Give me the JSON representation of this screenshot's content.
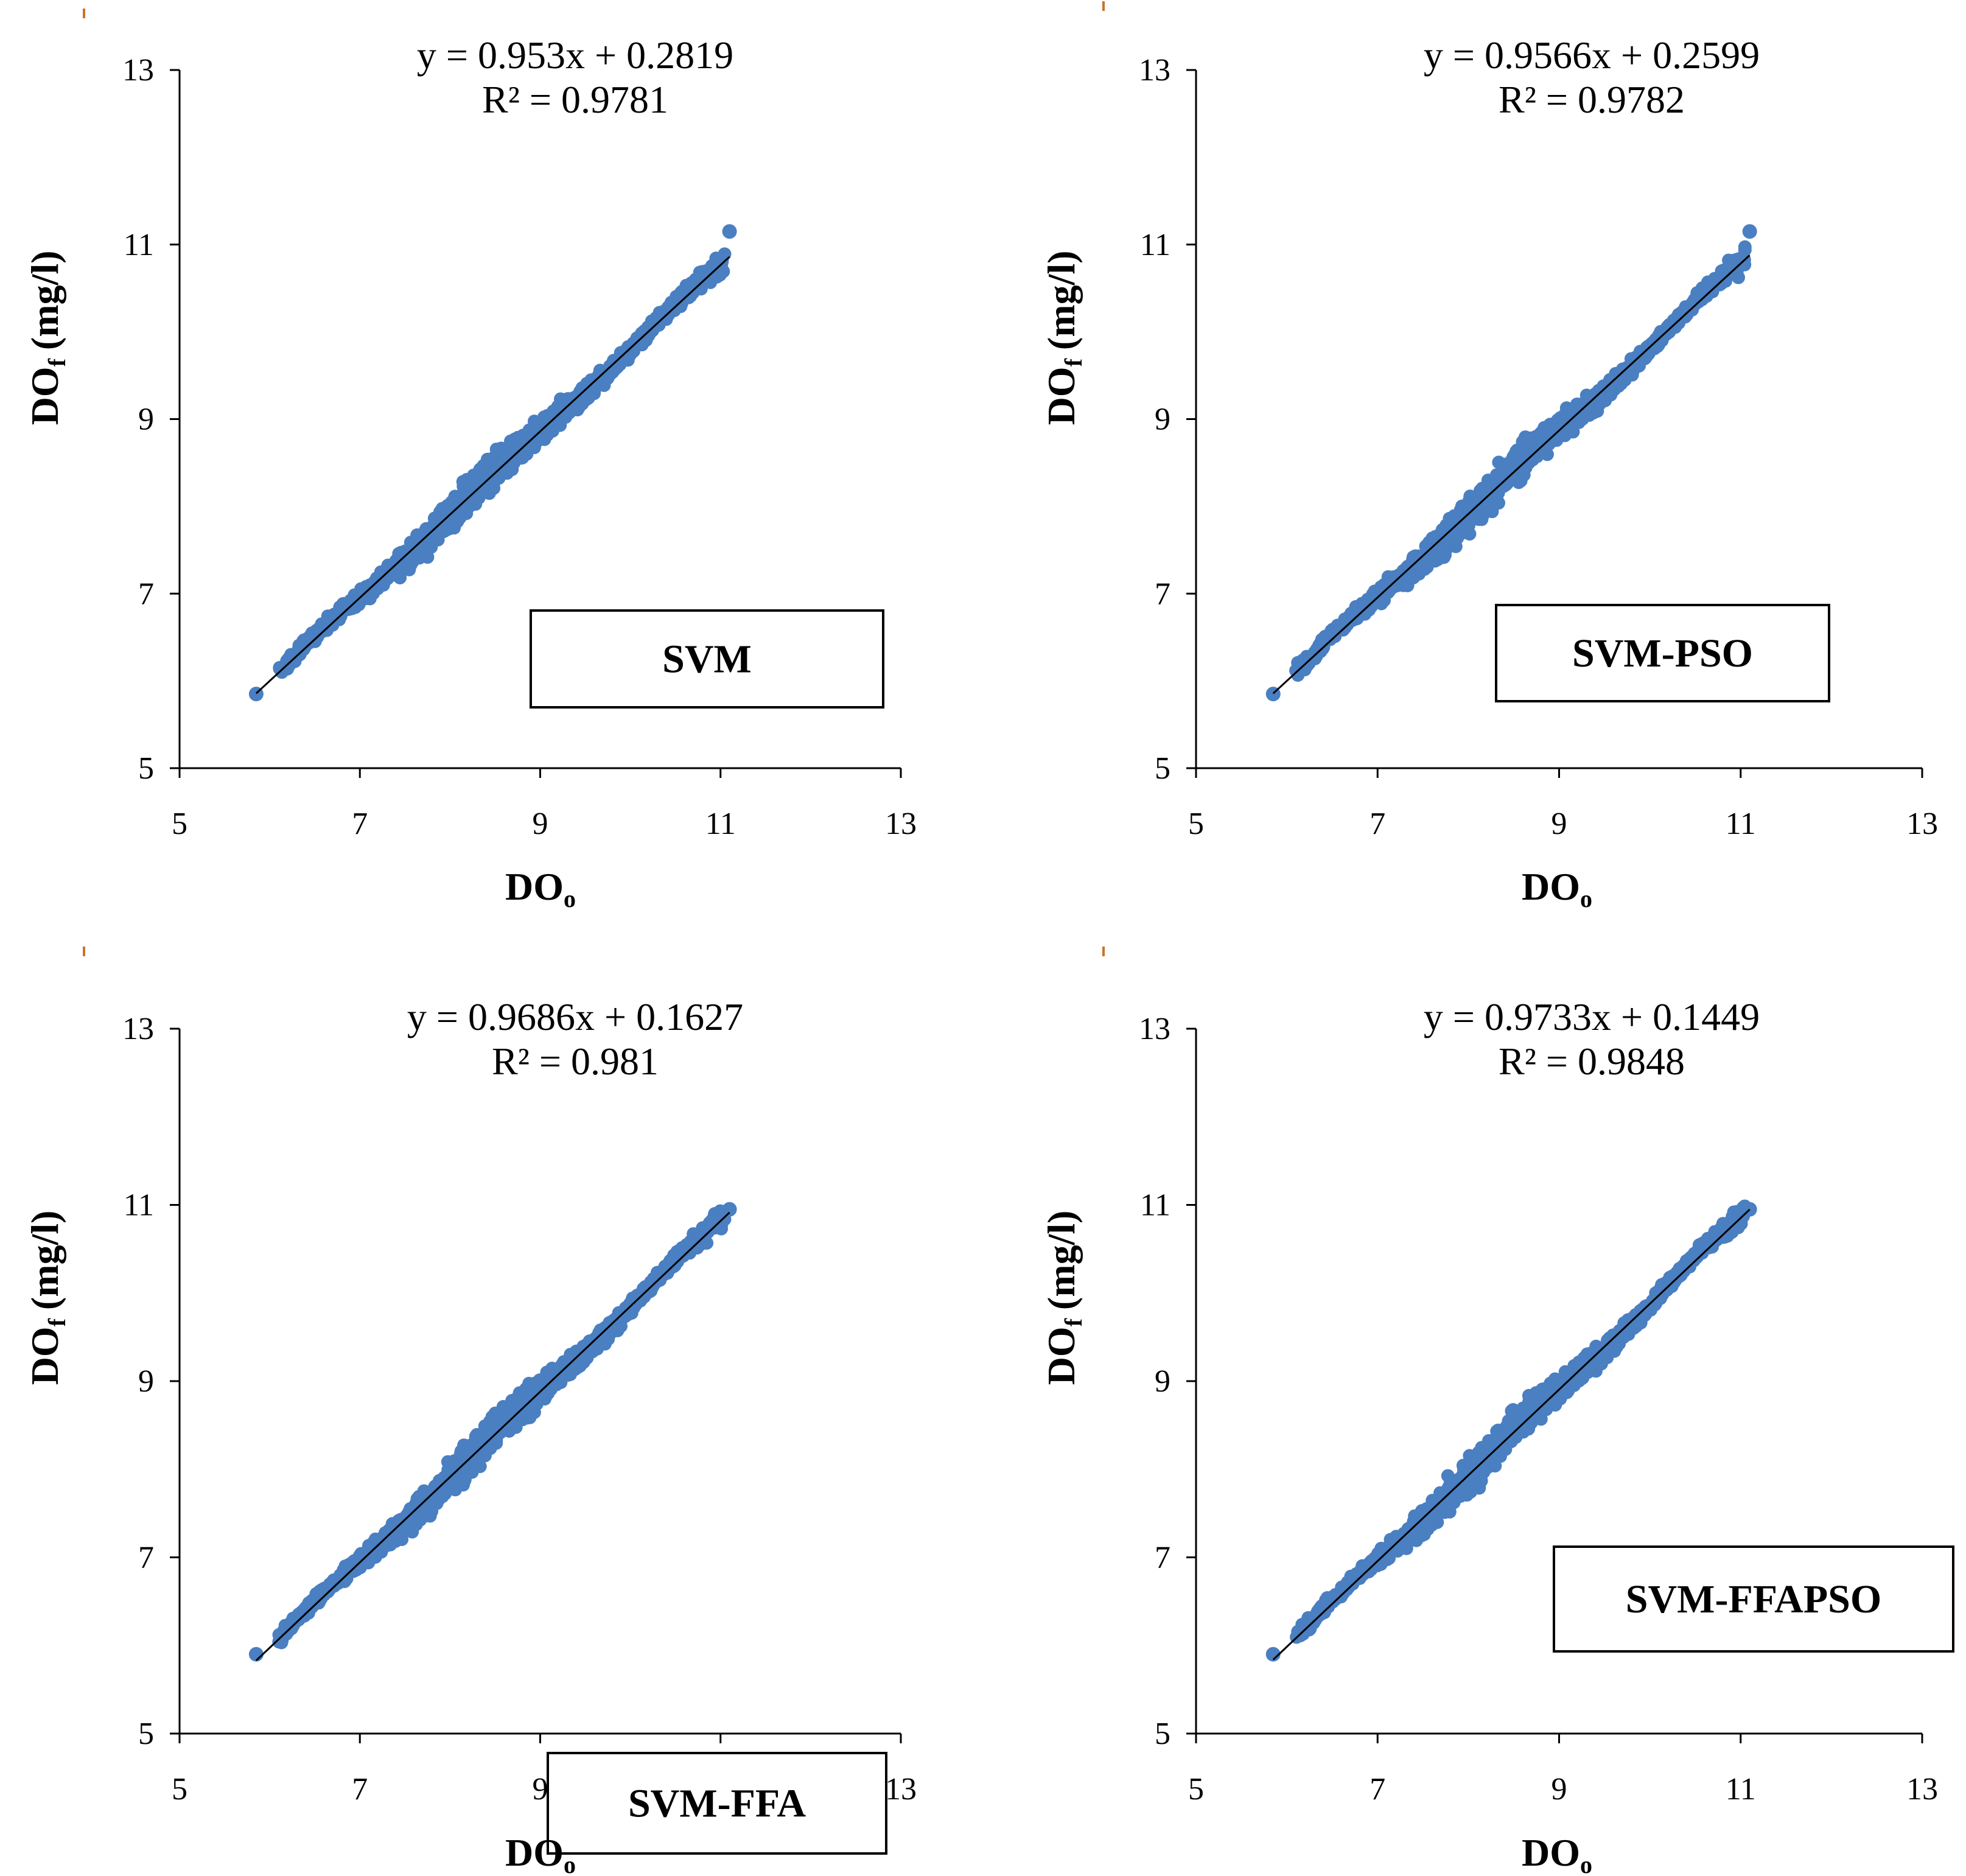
{
  "colors": {
    "points": "#4a7fc1",
    "trend": "#000000",
    "axis": "#000000",
    "box_border": "#000000"
  },
  "chart_data": [
    {
      "type": "scatter",
      "title": "",
      "xlabel": "DOo",
      "xlabel_main": "DO",
      "xlabel_sub": "o",
      "ylabel_main": "DO",
      "ylabel_sub": "f",
      "ylabel_unit": "(mg/l)",
      "xlim": [
        5,
        13
      ],
      "ylim": [
        5,
        13
      ],
      "xticks": [
        "5",
        "7",
        "9",
        "11",
        "13"
      ],
      "yticks": [
        "5",
        "7",
        "9",
        "11",
        "13"
      ],
      "grid": false,
      "trendline": {
        "slope": 0.953,
        "intercept": 0.2819,
        "r2": 0.9781,
        "x_range": [
          5.85,
          11.1
        ]
      },
      "equation": "y = 0.953x + 0.2819",
      "r2_label": "R² = 0.9781",
      "model": "SVM",
      "n_points": 1400,
      "x_range": [
        5.85,
        11.1
      ],
      "extreme_points": [
        {
          "x": 5.85,
          "y": 5.85
        },
        {
          "x": 11.1,
          "y": 11.15
        }
      ]
    },
    {
      "type": "scatter",
      "title": "",
      "xlabel": "DOo",
      "xlabel_main": "DO",
      "xlabel_sub": "o",
      "ylabel_main": "DO",
      "ylabel_sub": "f",
      "ylabel_unit": "(mg/l)",
      "xlim": [
        5,
        13
      ],
      "ylim": [
        5,
        13
      ],
      "xticks": [
        "5",
        "7",
        "9",
        "11",
        "13"
      ],
      "yticks": [
        "5",
        "7",
        "9",
        "11",
        "13"
      ],
      "grid": false,
      "trendline": {
        "slope": 0.9566,
        "intercept": 0.2599,
        "r2": 0.9782,
        "x_range": [
          5.85,
          11.1
        ]
      },
      "equation": "y = 0.9566x + 0.2599",
      "r2_label": "R² = 0.9782",
      "model": "SVM-PSO",
      "n_points": 1400,
      "x_range": [
        5.85,
        11.1
      ],
      "extreme_points": [
        {
          "x": 5.85,
          "y": 5.85
        },
        {
          "x": 11.1,
          "y": 11.15
        }
      ]
    },
    {
      "type": "scatter",
      "title": "",
      "xlabel": "DOo",
      "xlabel_main": "DO",
      "xlabel_sub": "o",
      "ylabel_main": "DO",
      "ylabel_sub": "f",
      "ylabel_unit": "(mg/l)",
      "xlim": [
        5,
        13
      ],
      "ylim": [
        5,
        13
      ],
      "xticks": [
        "5",
        "7",
        "9",
        "11",
        "13"
      ],
      "yticks": [
        "5",
        "7",
        "9",
        "11",
        "13"
      ],
      "grid": false,
      "trendline": {
        "slope": 0.9686,
        "intercept": 0.1627,
        "r2": 0.981,
        "x_range": [
          5.85,
          11.1
        ]
      },
      "equation": "y = 0.9686x + 0.1627",
      "r2_label": "R² = 0.981",
      "model": "SVM-FFA",
      "n_points": 1400,
      "x_range": [
        5.85,
        11.1
      ],
      "extreme_points": [
        {
          "x": 5.85,
          "y": 5.9
        },
        {
          "x": 11.1,
          "y": 10.95
        }
      ]
    },
    {
      "type": "scatter",
      "title": "",
      "xlabel": "DOo",
      "xlabel_main": "DO",
      "xlabel_sub": "o",
      "ylabel_main": "DO",
      "ylabel_sub": "f",
      "ylabel_unit": "(mg/l)",
      "xlim": [
        5,
        13
      ],
      "ylim": [
        5,
        13
      ],
      "xticks": [
        "5",
        "7",
        "9",
        "11",
        "13"
      ],
      "yticks": [
        "5",
        "7",
        "9",
        "11",
        "13"
      ],
      "grid": false,
      "trendline": {
        "slope": 0.9733,
        "intercept": 0.1449,
        "r2": 0.9848,
        "x_range": [
          5.85,
          11.1
        ]
      },
      "equation": "y = 0.9733x + 0.1449",
      "r2_label": "R² = 0.9848",
      "model": "SVM-FFAPSO",
      "n_points": 1400,
      "x_range": [
        5.85,
        11.1
      ],
      "extreme_points": [
        {
          "x": 5.85,
          "y": 5.9
        },
        {
          "x": 11.1,
          "y": 10.95
        }
      ]
    }
  ]
}
